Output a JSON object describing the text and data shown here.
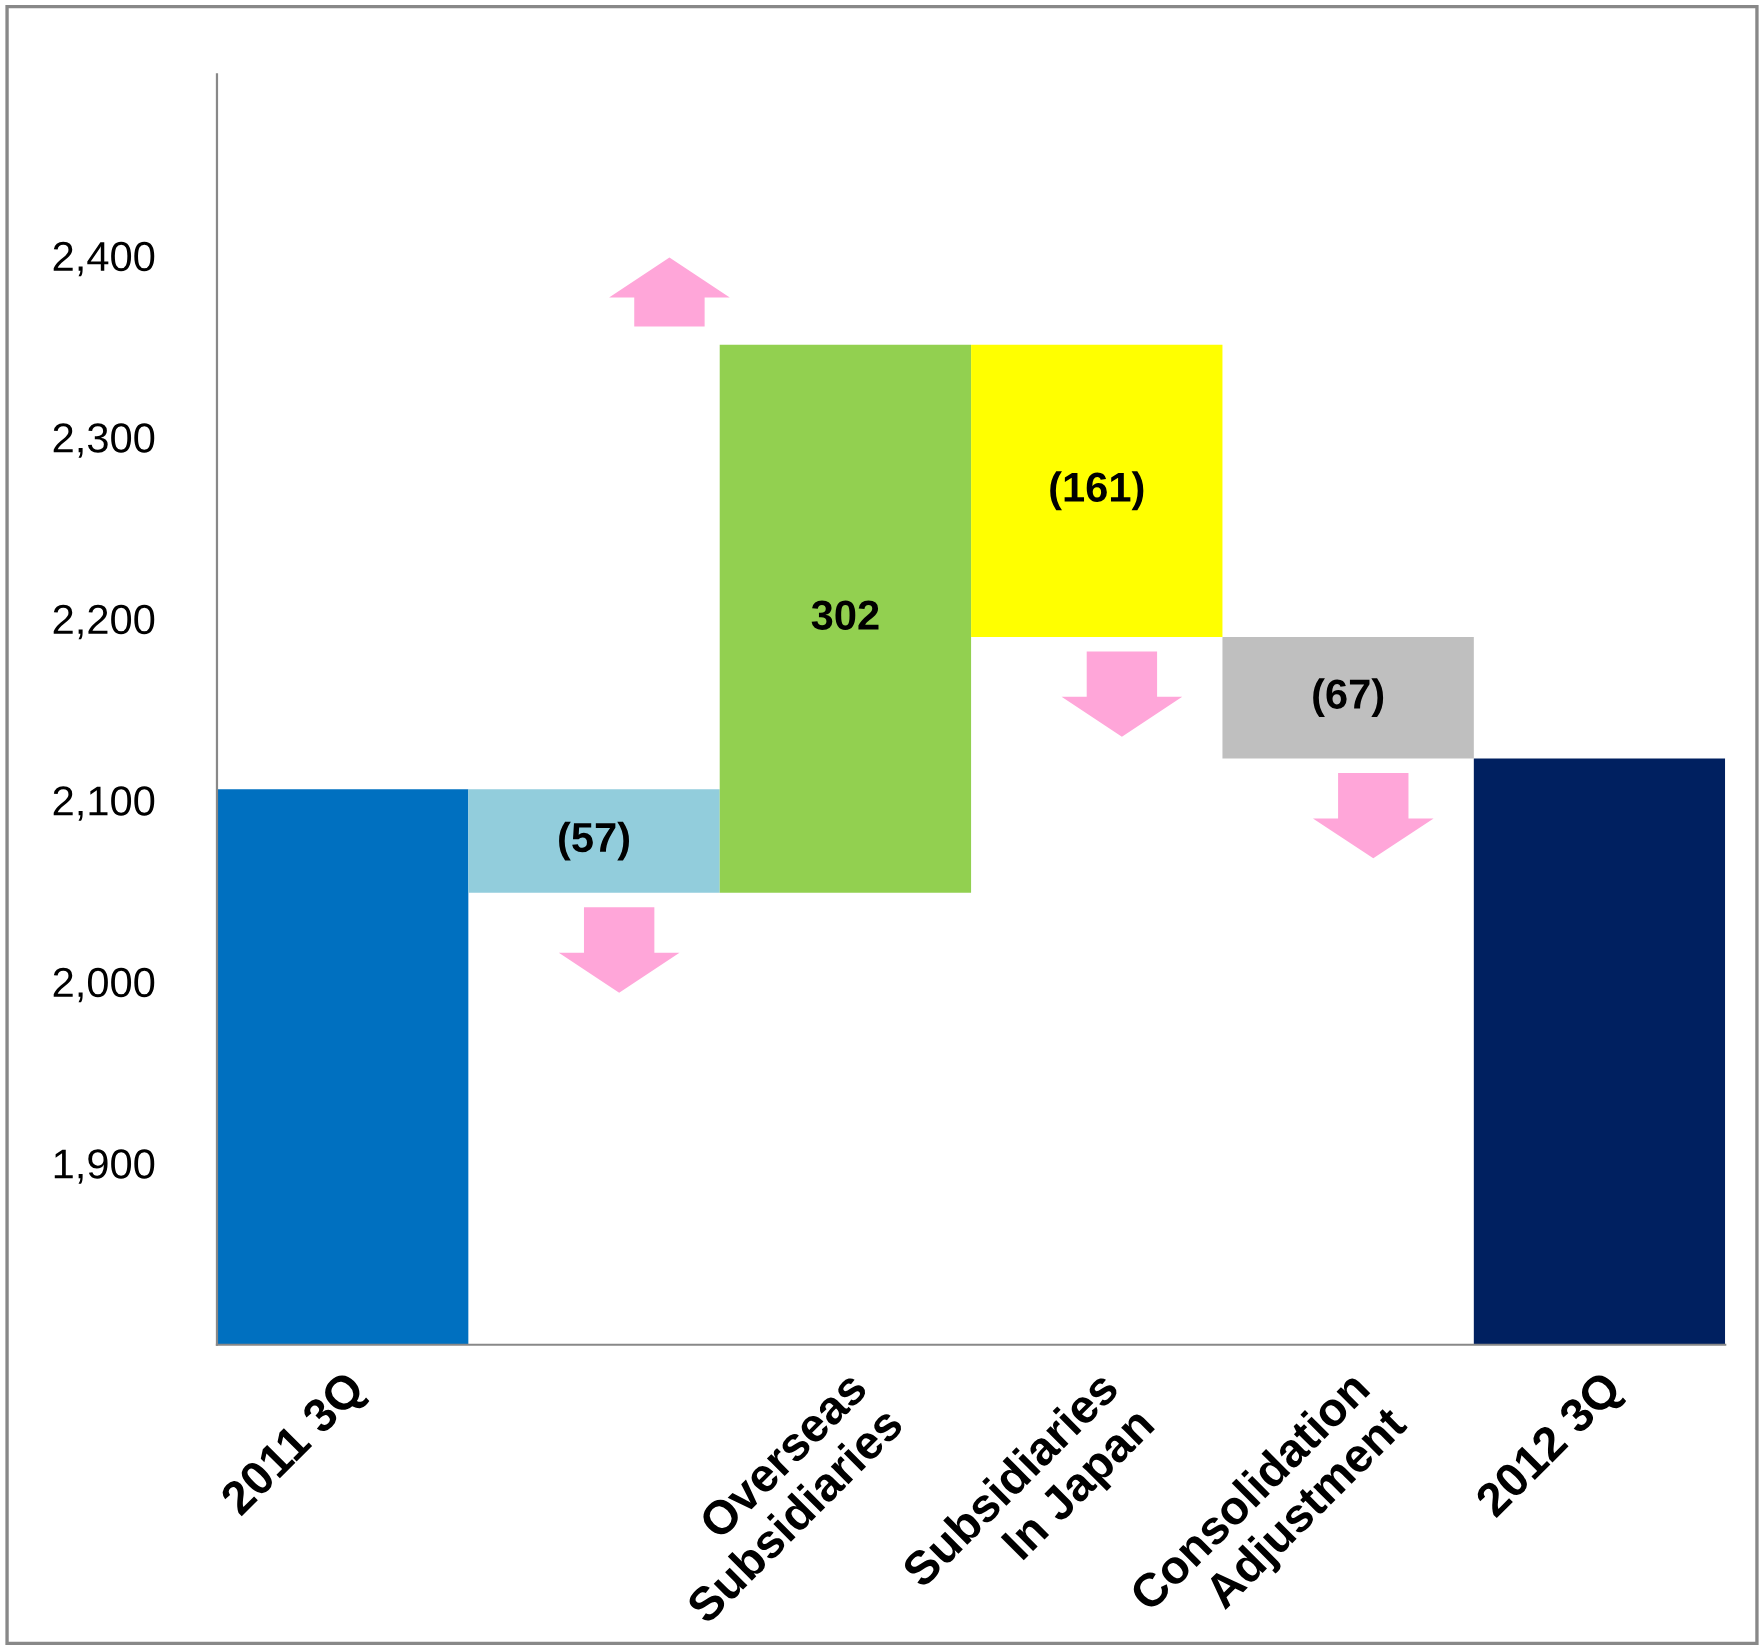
{
  "chart_data": {
    "type": "bar",
    "categories": [
      "2011 3Q",
      null,
      "Overseas\nSubsidiaries",
      "Subsidiaries\nIn Japan",
      "Consolidation\nAdjustment",
      "2012 3Q"
    ],
    "values": [
      2106,
      -57,
      302,
      -161,
      -67,
      2123
    ],
    "base": [
      null,
      2106,
      2049,
      2351,
      2190,
      null
    ],
    "colors": [
      "#0070c0",
      "#92cddc",
      "#92d050",
      "#ffff00",
      "#bfbfbf",
      "#002060"
    ],
    "value_labels": [
      null,
      "(57)",
      "302",
      "(161)",
      "(67)",
      null
    ],
    "ylim": [
      1800,
      2500
    ],
    "yticks": [
      {
        "value": 1900,
        "label": "1,900"
      },
      {
        "value": 2000,
        "label": "2,000"
      },
      {
        "value": 2100,
        "label": "2,100"
      },
      {
        "value": 2200,
        "label": "2,200"
      },
      {
        "value": 2300,
        "label": "2,300"
      },
      {
        "value": 2400,
        "label": "2,400"
      }
    ],
    "grid": false,
    "legend": false
  }
}
